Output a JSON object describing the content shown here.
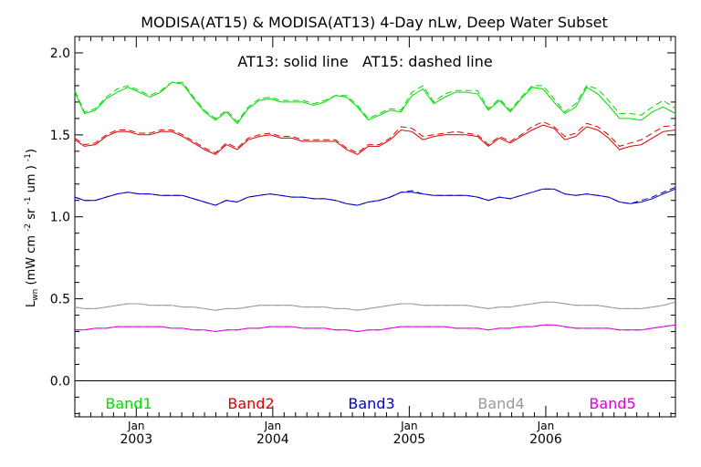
{
  "chart_data": {
    "type": "line",
    "title": "MODISA(AT15) & MODISA(AT13) 4-Day nLw, Deep Water Subset",
    "annotation": "AT13: solid line   AT15: dashed line",
    "ylabel": "L",
    "ylabel_sub": "wn",
    "ylabel_units": " (mW cm  sr  um )",
    "ylabel_sup": [
      "-2",
      "-1",
      "-1"
    ],
    "xlim": [
      2002.55,
      2006.95
    ],
    "ylim": [
      -0.22,
      2.1
    ],
    "xticks": [
      {
        "x": 2003.0,
        "label_top": "Jan",
        "label_bottom": "2003"
      },
      {
        "x": 2004.0,
        "label_top": "Jan",
        "label_bottom": "2004"
      },
      {
        "x": 2005.0,
        "label_top": "Jan",
        "label_bottom": "2005"
      },
      {
        "x": 2006.0,
        "label_top": "Jan",
        "label_bottom": "2006"
      }
    ],
    "yticks": [
      "0.0",
      "0.5",
      "1.0",
      "1.5",
      "2.0"
    ],
    "grid": false,
    "zero_line": true,
    "legend_position": "bottom",
    "series": [
      {
        "name": "Band1",
        "color": "#00dd00",
        "x": [
          2002.55,
          2002.62,
          2002.7,
          2002.78,
          2002.86,
          2002.94,
          2003.02,
          2003.1,
          2003.18,
          2003.26,
          2003.34,
          2003.42,
          2003.5,
          2003.58,
          2003.66,
          2003.74,
          2003.82,
          2003.9,
          2003.98,
          2004.06,
          2004.14,
          2004.22,
          2004.3,
          2004.38,
          2004.46,
          2004.54,
          2004.62,
          2004.7,
          2004.78,
          2004.86,
          2004.94,
          2005.02,
          2005.1,
          2005.18,
          2005.26,
          2005.34,
          2005.42,
          2005.5,
          2005.58,
          2005.66,
          2005.74,
          2005.82,
          2005.9,
          2005.98,
          2006.06,
          2006.14,
          2006.22,
          2006.3,
          2006.38,
          2006.46,
          2006.54,
          2006.62,
          2006.7,
          2006.78,
          2006.86,
          2006.95
        ],
        "at13": [
          1.76,
          1.63,
          1.65,
          1.72,
          1.76,
          1.79,
          1.76,
          1.73,
          1.76,
          1.82,
          1.81,
          1.72,
          1.64,
          1.59,
          1.64,
          1.57,
          1.66,
          1.71,
          1.72,
          1.7,
          1.7,
          1.7,
          1.68,
          1.7,
          1.74,
          1.73,
          1.67,
          1.59,
          1.62,
          1.65,
          1.64,
          1.74,
          1.78,
          1.69,
          1.73,
          1.76,
          1.76,
          1.75,
          1.65,
          1.71,
          1.64,
          1.72,
          1.79,
          1.78,
          1.7,
          1.63,
          1.67,
          1.79,
          1.75,
          1.68,
          1.6,
          1.6,
          1.59,
          1.64,
          1.67,
          1.63
        ],
        "at15": [
          1.77,
          1.64,
          1.66,
          1.73,
          1.78,
          1.8,
          1.77,
          1.74,
          1.77,
          1.82,
          1.82,
          1.73,
          1.65,
          1.6,
          1.65,
          1.58,
          1.67,
          1.72,
          1.73,
          1.71,
          1.71,
          1.71,
          1.69,
          1.71,
          1.74,
          1.74,
          1.68,
          1.6,
          1.63,
          1.66,
          1.65,
          1.76,
          1.8,
          1.7,
          1.75,
          1.77,
          1.77,
          1.77,
          1.66,
          1.72,
          1.65,
          1.73,
          1.8,
          1.8,
          1.72,
          1.64,
          1.69,
          1.8,
          1.78,
          1.71,
          1.63,
          1.63,
          1.62,
          1.67,
          1.71,
          1.66
        ]
      },
      {
        "name": "Band2",
        "color": "#dd0000",
        "x": [
          2002.55,
          2002.62,
          2002.7,
          2002.78,
          2002.86,
          2002.94,
          2003.02,
          2003.1,
          2003.18,
          2003.26,
          2003.34,
          2003.42,
          2003.5,
          2003.58,
          2003.66,
          2003.74,
          2003.82,
          2003.9,
          2003.98,
          2004.06,
          2004.14,
          2004.22,
          2004.3,
          2004.38,
          2004.46,
          2004.54,
          2004.62,
          2004.7,
          2004.78,
          2004.86,
          2004.94,
          2005.02,
          2005.1,
          2005.18,
          2005.26,
          2005.34,
          2005.42,
          2005.5,
          2005.58,
          2005.66,
          2005.74,
          2005.82,
          2005.9,
          2005.98,
          2006.06,
          2006.14,
          2006.22,
          2006.3,
          2006.38,
          2006.46,
          2006.54,
          2006.62,
          2006.7,
          2006.78,
          2006.86,
          2006.95
        ],
        "at13": [
          1.47,
          1.43,
          1.44,
          1.49,
          1.52,
          1.52,
          1.5,
          1.5,
          1.52,
          1.52,
          1.49,
          1.45,
          1.41,
          1.38,
          1.44,
          1.41,
          1.47,
          1.49,
          1.5,
          1.48,
          1.48,
          1.46,
          1.46,
          1.46,
          1.46,
          1.41,
          1.38,
          1.43,
          1.43,
          1.47,
          1.53,
          1.52,
          1.47,
          1.49,
          1.5,
          1.5,
          1.5,
          1.49,
          1.43,
          1.48,
          1.45,
          1.49,
          1.53,
          1.56,
          1.54,
          1.47,
          1.49,
          1.55,
          1.53,
          1.48,
          1.41,
          1.43,
          1.44,
          1.48,
          1.52,
          1.53
        ],
        "at15": [
          1.48,
          1.44,
          1.45,
          1.5,
          1.53,
          1.53,
          1.51,
          1.51,
          1.53,
          1.53,
          1.5,
          1.46,
          1.42,
          1.39,
          1.45,
          1.42,
          1.48,
          1.5,
          1.51,
          1.49,
          1.49,
          1.47,
          1.47,
          1.47,
          1.47,
          1.42,
          1.39,
          1.44,
          1.44,
          1.48,
          1.55,
          1.54,
          1.49,
          1.5,
          1.51,
          1.52,
          1.51,
          1.5,
          1.44,
          1.49,
          1.46,
          1.5,
          1.55,
          1.58,
          1.55,
          1.49,
          1.51,
          1.57,
          1.55,
          1.5,
          1.43,
          1.45,
          1.47,
          1.51,
          1.55,
          1.56
        ]
      },
      {
        "name": "Band3",
        "color": "#0000cc",
        "x": [
          2002.55,
          2002.62,
          2002.7,
          2002.78,
          2002.86,
          2002.94,
          2003.02,
          2003.1,
          2003.18,
          2003.26,
          2003.34,
          2003.42,
          2003.5,
          2003.58,
          2003.66,
          2003.74,
          2003.82,
          2003.9,
          2003.98,
          2004.06,
          2004.14,
          2004.22,
          2004.3,
          2004.38,
          2004.46,
          2004.54,
          2004.62,
          2004.7,
          2004.78,
          2004.86,
          2004.94,
          2005.02,
          2005.1,
          2005.18,
          2005.26,
          2005.34,
          2005.42,
          2005.5,
          2005.58,
          2005.66,
          2005.74,
          2005.82,
          2005.9,
          2005.98,
          2006.06,
          2006.14,
          2006.22,
          2006.3,
          2006.38,
          2006.46,
          2006.54,
          2006.62,
          2006.7,
          2006.78,
          2006.86,
          2006.95
        ],
        "at13": [
          1.12,
          1.1,
          1.1,
          1.12,
          1.14,
          1.15,
          1.14,
          1.14,
          1.13,
          1.13,
          1.13,
          1.11,
          1.09,
          1.07,
          1.1,
          1.09,
          1.12,
          1.13,
          1.14,
          1.13,
          1.12,
          1.12,
          1.11,
          1.11,
          1.1,
          1.08,
          1.07,
          1.09,
          1.1,
          1.12,
          1.15,
          1.15,
          1.14,
          1.13,
          1.13,
          1.13,
          1.13,
          1.12,
          1.1,
          1.12,
          1.11,
          1.13,
          1.15,
          1.17,
          1.17,
          1.14,
          1.13,
          1.14,
          1.13,
          1.12,
          1.09,
          1.08,
          1.09,
          1.11,
          1.14,
          1.17
        ],
        "at15": [
          1.12,
          1.1,
          1.1,
          1.12,
          1.14,
          1.15,
          1.14,
          1.14,
          1.13,
          1.13,
          1.13,
          1.11,
          1.09,
          1.07,
          1.1,
          1.09,
          1.12,
          1.13,
          1.14,
          1.13,
          1.12,
          1.12,
          1.11,
          1.11,
          1.1,
          1.08,
          1.07,
          1.09,
          1.1,
          1.12,
          1.15,
          1.16,
          1.14,
          1.13,
          1.13,
          1.13,
          1.13,
          1.12,
          1.1,
          1.12,
          1.11,
          1.13,
          1.15,
          1.17,
          1.17,
          1.14,
          1.13,
          1.14,
          1.13,
          1.12,
          1.09,
          1.08,
          1.1,
          1.12,
          1.15,
          1.18
        ]
      },
      {
        "name": "Band4",
        "color": "#999999",
        "x": [
          2002.55,
          2002.62,
          2002.7,
          2002.78,
          2002.86,
          2002.94,
          2003.02,
          2003.1,
          2003.18,
          2003.26,
          2003.34,
          2003.42,
          2003.5,
          2003.58,
          2003.66,
          2003.74,
          2003.82,
          2003.9,
          2003.98,
          2004.06,
          2004.14,
          2004.22,
          2004.3,
          2004.38,
          2004.46,
          2004.54,
          2004.62,
          2004.7,
          2004.78,
          2004.86,
          2004.94,
          2005.02,
          2005.1,
          2005.18,
          2005.26,
          2005.34,
          2005.42,
          2005.5,
          2005.58,
          2005.66,
          2005.74,
          2005.82,
          2005.9,
          2005.98,
          2006.06,
          2006.14,
          2006.22,
          2006.3,
          2006.38,
          2006.46,
          2006.54,
          2006.62,
          2006.7,
          2006.78,
          2006.86,
          2006.95
        ],
        "at13": [
          0.45,
          0.44,
          0.44,
          0.45,
          0.46,
          0.47,
          0.47,
          0.46,
          0.46,
          0.46,
          0.45,
          0.45,
          0.44,
          0.43,
          0.44,
          0.44,
          0.45,
          0.46,
          0.46,
          0.46,
          0.46,
          0.45,
          0.45,
          0.45,
          0.44,
          0.44,
          0.43,
          0.44,
          0.45,
          0.46,
          0.47,
          0.47,
          0.46,
          0.46,
          0.46,
          0.46,
          0.46,
          0.45,
          0.44,
          0.45,
          0.45,
          0.46,
          0.47,
          0.48,
          0.48,
          0.47,
          0.46,
          0.46,
          0.46,
          0.45,
          0.44,
          0.44,
          0.44,
          0.45,
          0.46,
          0.48
        ],
        "at15": [
          0.45,
          0.44,
          0.44,
          0.45,
          0.46,
          0.47,
          0.47,
          0.46,
          0.46,
          0.46,
          0.45,
          0.45,
          0.44,
          0.43,
          0.44,
          0.44,
          0.45,
          0.46,
          0.46,
          0.46,
          0.46,
          0.45,
          0.45,
          0.45,
          0.44,
          0.44,
          0.43,
          0.44,
          0.45,
          0.46,
          0.47,
          0.47,
          0.46,
          0.46,
          0.46,
          0.46,
          0.46,
          0.45,
          0.44,
          0.45,
          0.45,
          0.46,
          0.47,
          0.48,
          0.48,
          0.47,
          0.46,
          0.46,
          0.46,
          0.45,
          0.44,
          0.44,
          0.44,
          0.45,
          0.46,
          0.48
        ]
      },
      {
        "name": "Band5",
        "color": "#dd00dd",
        "x": [
          2002.55,
          2002.62,
          2002.7,
          2002.78,
          2002.86,
          2002.94,
          2003.02,
          2003.1,
          2003.18,
          2003.26,
          2003.34,
          2003.42,
          2003.5,
          2003.58,
          2003.66,
          2003.74,
          2003.82,
          2003.9,
          2003.98,
          2004.06,
          2004.14,
          2004.22,
          2004.3,
          2004.38,
          2004.46,
          2004.54,
          2004.62,
          2004.7,
          2004.78,
          2004.86,
          2004.94,
          2005.02,
          2005.1,
          2005.18,
          2005.26,
          2005.34,
          2005.42,
          2005.5,
          2005.58,
          2005.66,
          2005.74,
          2005.82,
          2005.9,
          2005.98,
          2006.06,
          2006.14,
          2006.22,
          2006.3,
          2006.38,
          2006.46,
          2006.54,
          2006.62,
          2006.7,
          2006.78,
          2006.86,
          2006.95
        ],
        "at13": [
          0.31,
          0.31,
          0.32,
          0.32,
          0.33,
          0.33,
          0.33,
          0.33,
          0.33,
          0.32,
          0.32,
          0.31,
          0.31,
          0.3,
          0.31,
          0.31,
          0.32,
          0.32,
          0.33,
          0.33,
          0.33,
          0.32,
          0.32,
          0.32,
          0.31,
          0.31,
          0.3,
          0.31,
          0.31,
          0.32,
          0.33,
          0.33,
          0.33,
          0.33,
          0.33,
          0.32,
          0.32,
          0.32,
          0.31,
          0.32,
          0.32,
          0.33,
          0.33,
          0.34,
          0.34,
          0.33,
          0.32,
          0.32,
          0.32,
          0.32,
          0.31,
          0.31,
          0.31,
          0.32,
          0.33,
          0.34
        ],
        "at15": [
          0.31,
          0.31,
          0.32,
          0.32,
          0.33,
          0.33,
          0.33,
          0.33,
          0.33,
          0.32,
          0.32,
          0.31,
          0.31,
          0.3,
          0.31,
          0.31,
          0.32,
          0.32,
          0.33,
          0.33,
          0.33,
          0.32,
          0.32,
          0.32,
          0.31,
          0.31,
          0.3,
          0.31,
          0.31,
          0.32,
          0.33,
          0.33,
          0.33,
          0.33,
          0.33,
          0.32,
          0.32,
          0.32,
          0.31,
          0.32,
          0.32,
          0.33,
          0.33,
          0.34,
          0.34,
          0.33,
          0.32,
          0.32,
          0.32,
          0.32,
          0.31,
          0.31,
          0.31,
          0.32,
          0.33,
          0.34
        ]
      }
    ]
  }
}
